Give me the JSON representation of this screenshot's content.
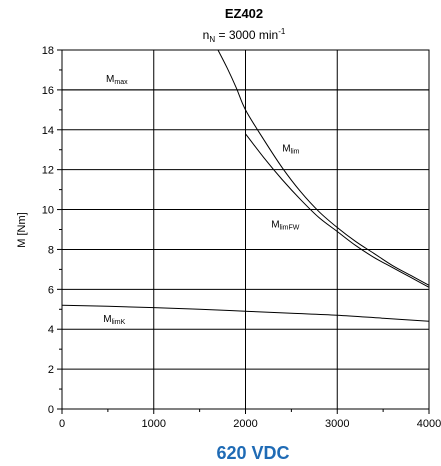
{
  "chart_data": {
    "type": "line",
    "title": "EZ402",
    "subtitle": {
      "main": "n",
      "sub": "N",
      "rest": " = 3000 min",
      "sup": "-1"
    },
    "ylabel": "M [Nm]",
    "xlabel": "",
    "footer": "620 VDC",
    "xlim": [
      0,
      4000
    ],
    "ylim": [
      0,
      18
    ],
    "x_ticks": [
      0,
      1000,
      2000,
      3000,
      4000
    ],
    "x_tick_labels": [
      "0",
      "1000",
      "2000",
      "3000",
      "4000"
    ],
    "y_ticks": [
      0,
      2,
      4,
      6,
      8,
      10,
      12,
      14,
      16,
      18
    ],
    "y_tick_labels": [
      "0",
      "2",
      "4",
      "6",
      "8",
      "10",
      "12",
      "14",
      "16",
      "18"
    ],
    "grid": true,
    "series": [
      {
        "name": "M_max",
        "label": {
          "main": "M",
          "sub": "max"
        },
        "label_at": [
          480,
          16.4
        ],
        "x": [
          0,
          4000
        ],
        "y": [
          16,
          16
        ]
      },
      {
        "name": "M_lim",
        "label": {
          "main": "M",
          "sub": "lim"
        },
        "label_at": [
          2400,
          12.9
        ],
        "x": [
          1700,
          1800,
          1900,
          2000,
          2200,
          2400,
          2600,
          2800,
          3000,
          3200,
          3400,
          3600,
          3800,
          4000
        ],
        "y": [
          18.0,
          17.1,
          16.1,
          15.0,
          13.5,
          12.1,
          10.9,
          9.9,
          9.1,
          8.4,
          7.8,
          7.2,
          6.7,
          6.2
        ]
      },
      {
        "name": "M_limFW",
        "label": {
          "main": "M",
          "sub": "limFW"
        },
        "label_at": [
          2280,
          9.1
        ],
        "x": [
          2000,
          2200,
          2400,
          2600,
          2800,
          3000,
          3200,
          3400,
          3600,
          3800,
          4000
        ],
        "y": [
          13.8,
          12.6,
          11.5,
          10.5,
          9.6,
          8.9,
          8.2,
          7.6,
          7.1,
          6.6,
          6.1
        ]
      },
      {
        "name": "M_limK",
        "label": {
          "main": "M",
          "sub": "limK"
        },
        "label_at": [
          450,
          4.35
        ],
        "x": [
          0,
          500,
          1000,
          1500,
          2000,
          2500,
          3000,
          3500,
          4000
        ],
        "y": [
          5.2,
          5.15,
          5.08,
          5.0,
          4.9,
          4.8,
          4.7,
          4.55,
          4.4
        ]
      }
    ]
  }
}
